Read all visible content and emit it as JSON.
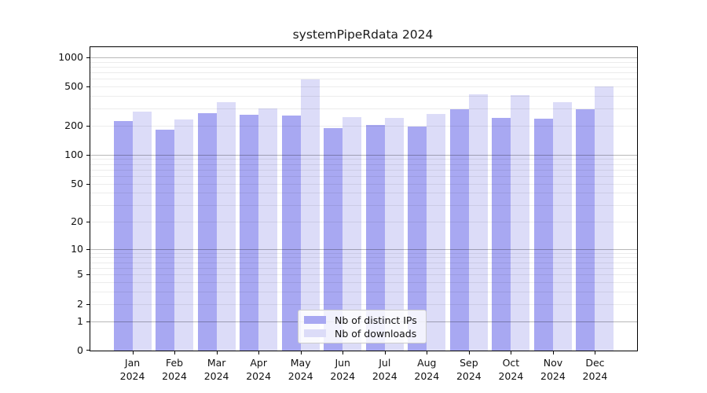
{
  "title": "systemPipeRdata 2024",
  "chart_data": {
    "type": "bar",
    "title": "systemPipeRdata 2024",
    "categories": [
      "Jan 2024",
      "Feb 2024",
      "Mar 2024",
      "Apr 2024",
      "May 2024",
      "Jun 2024",
      "Jul 2024",
      "Aug 2024",
      "Sep 2024",
      "Oct 2024",
      "Nov 2024",
      "Dec 2024"
    ],
    "x_tick_months": [
      "Jan",
      "Feb",
      "Mar",
      "Apr",
      "May",
      "Jun",
      "Jul",
      "Aug",
      "Sep",
      "Oct",
      "Nov",
      "Dec"
    ],
    "x_tick_year": "2024",
    "series": [
      {
        "name": "Nb of distinct IPs",
        "color": "#a8a8f2",
        "values": [
          222,
          181,
          268,
          258,
          253,
          188,
          201,
          195,
          294,
          240,
          235,
          294
        ]
      },
      {
        "name": "Nb of downloads",
        "color": "#dcdcf8",
        "values": [
          277,
          230,
          348,
          300,
          595,
          244,
          240,
          263,
          418,
          410,
          347,
          505
        ]
      }
    ],
    "xlabel": "",
    "ylabel": "",
    "yscale": "log1p",
    "ylim": [
      0,
      1250
    ],
    "yticks_labeled": [
      0,
      1,
      2,
      5,
      10,
      20,
      50,
      100,
      200,
      500,
      1000
    ],
    "grid_major_at": [
      1,
      10,
      100,
      1000
    ],
    "grid_minor_at": [
      2,
      3,
      4,
      5,
      6,
      7,
      8,
      9,
      20,
      30,
      40,
      50,
      60,
      70,
      80,
      90,
      200,
      300,
      400,
      500,
      600,
      700,
      800,
      900
    ],
    "grid": "both",
    "legend_position": "lower center"
  }
}
